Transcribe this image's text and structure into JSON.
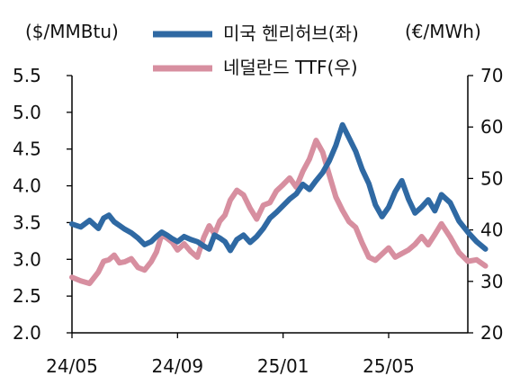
{
  "chart_data": {
    "type": "line",
    "title": "",
    "left_axis": {
      "label": "($/MMBtu)",
      "ylim": [
        2.0,
        5.5
      ],
      "ticks": [
        "5.5",
        "5.0",
        "4.5",
        "4.0",
        "3.5",
        "3.0",
        "2.5",
        "2.0"
      ]
    },
    "right_axis": {
      "label": "(€/MWh)",
      "ylim": [
        20,
        70
      ],
      "ticks": [
        "70",
        "60",
        "50",
        "40",
        "30",
        "20"
      ]
    },
    "x_axis": {
      "start": "24/05",
      "end": "25/08",
      "ticks": [
        "24/05",
        "24/09",
        "25/01",
        "25/05"
      ]
    },
    "legend": {
      "placement": "top-center"
    },
    "grid": false,
    "series": [
      {
        "name": "미국 헨리허브(좌)",
        "axis": "left",
        "color": "#2f69a3",
        "points": [
          [
            "24/05",
            3.48
          ],
          [
            "24/05",
            3.44
          ],
          [
            "24/05",
            3.53
          ],
          [
            "24/06",
            3.42
          ],
          [
            "24/06",
            3.56
          ],
          [
            "24/06",
            3.6
          ],
          [
            "24/06",
            3.51
          ],
          [
            "24/06",
            3.46
          ],
          [
            "24/07",
            3.41
          ],
          [
            "24/07",
            3.36
          ],
          [
            "24/07",
            3.29
          ],
          [
            "24/07",
            3.2
          ],
          [
            "24/08",
            3.24
          ],
          [
            "24/08",
            3.31
          ],
          [
            "24/08",
            3.37
          ],
          [
            "24/08",
            3.33
          ],
          [
            "24/08",
            3.28
          ],
          [
            "24/09",
            3.24
          ],
          [
            "24/09",
            3.31
          ],
          [
            "24/09",
            3.27
          ],
          [
            "24/09",
            3.24
          ],
          [
            "24/10",
            3.18
          ],
          [
            "24/10",
            3.14
          ],
          [
            "24/10",
            3.33
          ],
          [
            "24/10",
            3.29
          ],
          [
            "24/10",
            3.24
          ],
          [
            "24/11",
            3.12
          ],
          [
            "24/11",
            3.27
          ],
          [
            "24/11",
            3.33
          ],
          [
            "24/11",
            3.23
          ],
          [
            "24/12",
            3.31
          ],
          [
            "24/12",
            3.42
          ],
          [
            "24/12",
            3.56
          ],
          [
            "24/12",
            3.64
          ],
          [
            "25/01",
            3.73
          ],
          [
            "25/01",
            3.82
          ],
          [
            "25/01",
            3.89
          ],
          [
            "25/01",
            4.02
          ],
          [
            "25/02",
            3.95
          ],
          [
            "25/02",
            4.07
          ],
          [
            "25/02",
            4.18
          ],
          [
            "25/02",
            4.34
          ],
          [
            "25/03",
            4.55
          ],
          [
            "25/03",
            4.83
          ],
          [
            "25/03",
            4.65
          ],
          [
            "25/03",
            4.47
          ],
          [
            "25/04",
            4.22
          ],
          [
            "25/04",
            4.03
          ],
          [
            "25/04",
            3.74
          ],
          [
            "25/04",
            3.58
          ],
          [
            "25/05",
            3.71
          ],
          [
            "25/05",
            3.92
          ],
          [
            "25/05",
            4.07
          ],
          [
            "25/05",
            3.82
          ],
          [
            "25/06",
            3.63
          ],
          [
            "25/06",
            3.71
          ],
          [
            "25/06",
            3.81
          ],
          [
            "25/06",
            3.66
          ],
          [
            "25/07",
            3.88
          ],
          [
            "25/07",
            3.77
          ],
          [
            "25/07",
            3.52
          ],
          [
            "25/08",
            3.37
          ],
          [
            "25/08",
            3.24
          ],
          [
            "25/08",
            3.14
          ]
        ]
      },
      {
        "name": "네덜란드 TTF(우)",
        "axis": "right",
        "color": "#d78fa0",
        "points": [
          [
            "24/05",
            30.8
          ],
          [
            "24/05",
            30.1
          ],
          [
            "24/05",
            29.6
          ],
          [
            "24/06",
            31.8
          ],
          [
            "24/06",
            33.9
          ],
          [
            "24/06",
            34.2
          ],
          [
            "24/06",
            35.1
          ],
          [
            "24/06",
            33.6
          ],
          [
            "24/07",
            33.8
          ],
          [
            "24/07",
            34.4
          ],
          [
            "24/07",
            32.7
          ],
          [
            "24/07",
            32.2
          ],
          [
            "24/08",
            33.8
          ],
          [
            "24/08",
            35.7
          ],
          [
            "24/08",
            39.1
          ],
          [
            "24/08",
            38.4
          ],
          [
            "24/08",
            37.6
          ],
          [
            "24/09",
            36.1
          ],
          [
            "24/09",
            37.3
          ],
          [
            "24/09",
            35.8
          ],
          [
            "24/09",
            34.7
          ],
          [
            "24/10",
            38.6
          ],
          [
            "24/10",
            40.8
          ],
          [
            "24/10",
            39.2
          ],
          [
            "24/10",
            41.7
          ],
          [
            "24/10",
            42.9
          ],
          [
            "24/11",
            45.8
          ],
          [
            "24/11",
            47.7
          ],
          [
            "24/11",
            46.8
          ],
          [
            "24/11",
            44.2
          ],
          [
            "24/12",
            42.1
          ],
          [
            "24/12",
            44.8
          ],
          [
            "24/12",
            45.3
          ],
          [
            "24/12",
            47.6
          ],
          [
            "25/01",
            48.8
          ],
          [
            "25/01",
            50.1
          ],
          [
            "25/01",
            48.3
          ],
          [
            "25/01",
            51.4
          ],
          [
            "25/02",
            53.8
          ],
          [
            "25/02",
            57.4
          ],
          [
            "25/02",
            55.1
          ],
          [
            "25/02",
            50.7
          ],
          [
            "25/03",
            46.4
          ],
          [
            "25/03",
            43.8
          ],
          [
            "25/03",
            41.6
          ],
          [
            "25/03",
            40.5
          ],
          [
            "25/04",
            37.4
          ],
          [
            "25/04",
            34.7
          ],
          [
            "25/04",
            34.1
          ],
          [
            "25/04",
            35.3
          ],
          [
            "25/05",
            36.5
          ],
          [
            "25/05",
            34.7
          ],
          [
            "25/05",
            35.4
          ],
          [
            "25/05",
            36.1
          ],
          [
            "25/06",
            37.2
          ],
          [
            "25/06",
            38.7
          ],
          [
            "25/06",
            37.1
          ],
          [
            "25/06",
            39.1
          ],
          [
            "25/07",
            41.2
          ],
          [
            "25/07",
            38.6
          ],
          [
            "25/07",
            35.6
          ],
          [
            "25/08",
            33.9
          ],
          [
            "25/08",
            34.2
          ],
          [
            "25/08",
            33.0
          ]
        ]
      }
    ]
  }
}
